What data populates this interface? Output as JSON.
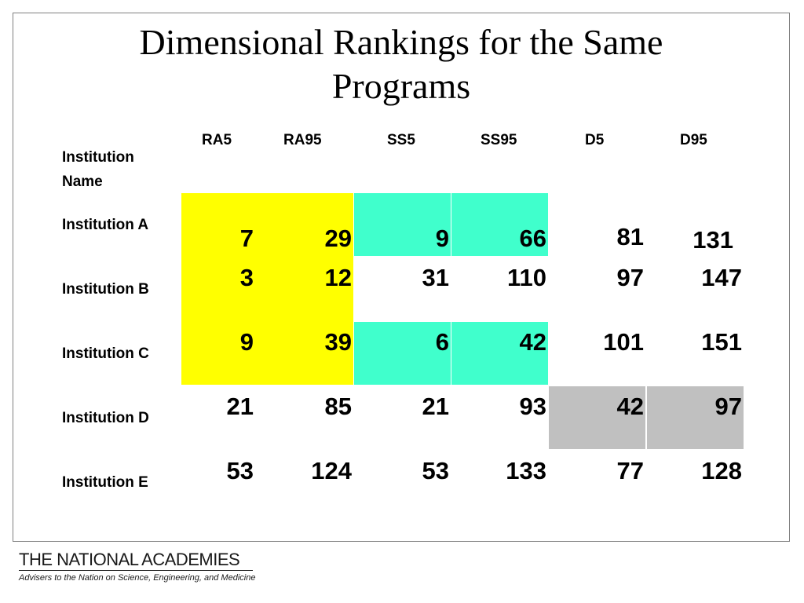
{
  "slide": {
    "title_line1": "Dimensional Rankings for the Same",
    "title_line2": "Programs"
  },
  "table": {
    "institution_header_line1": "Institution",
    "institution_header_line2": "Name",
    "columns": [
      "RA5",
      "RA95",
      "SS5",
      "SS95",
      "D5",
      "D95"
    ],
    "rows": [
      {
        "label": "Institution A",
        "values": [
          "7",
          "29",
          "9",
          "66",
          "81",
          "131"
        ]
      },
      {
        "label": "Institution B",
        "values": [
          "3",
          "12",
          "31",
          "110",
          "97",
          "147"
        ]
      },
      {
        "label": "Institution C",
        "values": [
          "9",
          "39",
          "6",
          "42",
          "101",
          "151"
        ]
      },
      {
        "label": "Institution D",
        "values": [
          "21",
          "85",
          "21",
          "93",
          "42",
          "97"
        ]
      },
      {
        "label": "Institution E",
        "values": [
          "53",
          "124",
          "53",
          "133",
          "77",
          "128"
        ]
      }
    ],
    "highlight_colors": {
      "yellow": "#ffff00",
      "teal": "#40ffcc",
      "gray": "#c0c0c0"
    }
  },
  "footer": {
    "org_name": "THE NATIONAL ACADEMIES",
    "tagline": "Advisers to the Nation on Science, Engineering, and Medicine"
  }
}
